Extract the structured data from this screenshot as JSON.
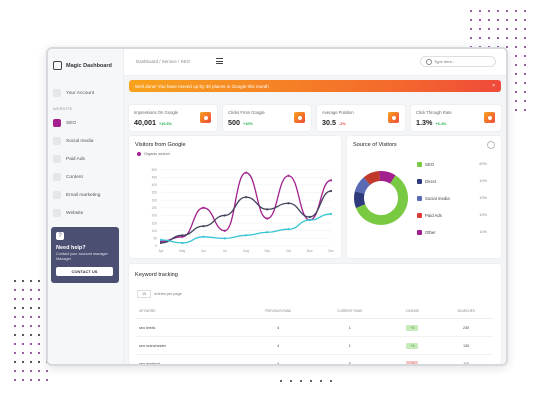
{
  "app": {
    "title": "Magic Dashboard"
  },
  "sidebar": {
    "account_label": "Your Account",
    "section_label": "WEBSITE",
    "items": [
      {
        "label": "SEO"
      },
      {
        "label": "Social media"
      },
      {
        "label": "Paid Ads"
      },
      {
        "label": "Content"
      },
      {
        "label": "Email marketing"
      },
      {
        "label": "Website"
      }
    ],
    "help": {
      "title": "Need help?",
      "text": "Contact your account manager Manager",
      "button_label": "CONTACT US"
    }
  },
  "topbar": {
    "breadcrumb": "Dashboard  /  Service  /  SEO",
    "search_placeholder": "Type here..."
  },
  "banner": {
    "text": "Well done! You have moved up by 30 places in Google this month",
    "close": "×"
  },
  "stats": [
    {
      "label": "Impressions On Google",
      "value": "40,001",
      "delta": "+10.6%",
      "delta_color": "#22b04b"
    },
    {
      "label": "Clicks From Google",
      "value": "500",
      "delta": "+10%",
      "delta_color": "#22b04b"
    },
    {
      "label": "Average Position",
      "value": "30.5",
      "delta": "-2%",
      "delta_color": "#e23b3b"
    },
    {
      "label": "Click Through Rate",
      "value": "1.3%",
      "delta": "+6.4%",
      "delta_color": "#22b04b"
    }
  ],
  "visitors": {
    "title": "Visitors from Google",
    "legend": "Organic search"
  },
  "chart_data": {
    "type": "line",
    "categories": [
      "Apr",
      "May",
      "Jun",
      "Jul",
      "Aug",
      "Sep",
      "Oct",
      "Nov",
      "Dec"
    ],
    "ylim": [
      0,
      550
    ],
    "yticks": [
      0,
      50,
      100,
      150,
      200,
      250,
      300,
      350,
      400,
      450,
      500
    ],
    "series": [
      {
        "name": "Organic search",
        "color": "#a31f8e",
        "values": [
          30,
          60,
          250,
          100,
          480,
          180,
          460,
          170,
          430
        ]
      },
      {
        "name": "",
        "color": "#3f4359",
        "values": [
          20,
          70,
          130,
          200,
          320,
          240,
          280,
          190,
          360
        ]
      },
      {
        "name": "",
        "color": "#35c4d4",
        "values": [
          40,
          20,
          60,
          50,
          70,
          90,
          110,
          170,
          210
        ]
      }
    ],
    "grid": true,
    "legend_position": "top-left"
  },
  "sources": {
    "title": "Source of Visitors",
    "donut": [
      {
        "label": "SEO",
        "value": 60,
        "color": "#7ac943"
      },
      {
        "label": "Direct",
        "value": 10,
        "color": "#2e3a7b"
      },
      {
        "label": "Social media",
        "value": 10,
        "color": "#5a6bb5"
      },
      {
        "label": "Paid Ads",
        "value": 10,
        "color": "#c0392b"
      },
      {
        "label": "Other",
        "value": 10,
        "color": "#a31f8e"
      }
    ],
    "rows": [
      {
        "label": "SEO",
        "pct": "60%",
        "color": "#7ac943"
      },
      {
        "label": "Direct",
        "pct": "10%",
        "color": "#2e3a7b"
      },
      {
        "label": "Social media",
        "pct": "10%",
        "color": "#5a6bb5"
      },
      {
        "label": "Paid Ads",
        "pct": "10%",
        "color": "#e03b3b"
      },
      {
        "label": "Other",
        "pct": "10%",
        "color": "#a31f8e"
      }
    ]
  },
  "keywords": {
    "title": "Keyword tracking",
    "per_page": "15",
    "per_page_label": "entries per page",
    "columns": [
      "KEYWORD",
      "PREVIOUS RANK",
      "CURRENT RANK",
      "CHANGE",
      "SEARCHES"
    ],
    "rows": [
      {
        "keyword": "seo leeds",
        "prev": "4",
        "curr": "1",
        "change": "+3",
        "change_color": "#c8ecb9",
        "searches": "230"
      },
      {
        "keyword": "seo manchester",
        "prev": "4",
        "curr": "1",
        "change": "+3",
        "change_color": "#c8ecb9",
        "searches": "130"
      },
      {
        "keyword": "seo england",
        "prev": "4",
        "curr": "5",
        "change": "-1",
        "change_color": "#f7c4c4",
        "searches": "110"
      }
    ]
  }
}
